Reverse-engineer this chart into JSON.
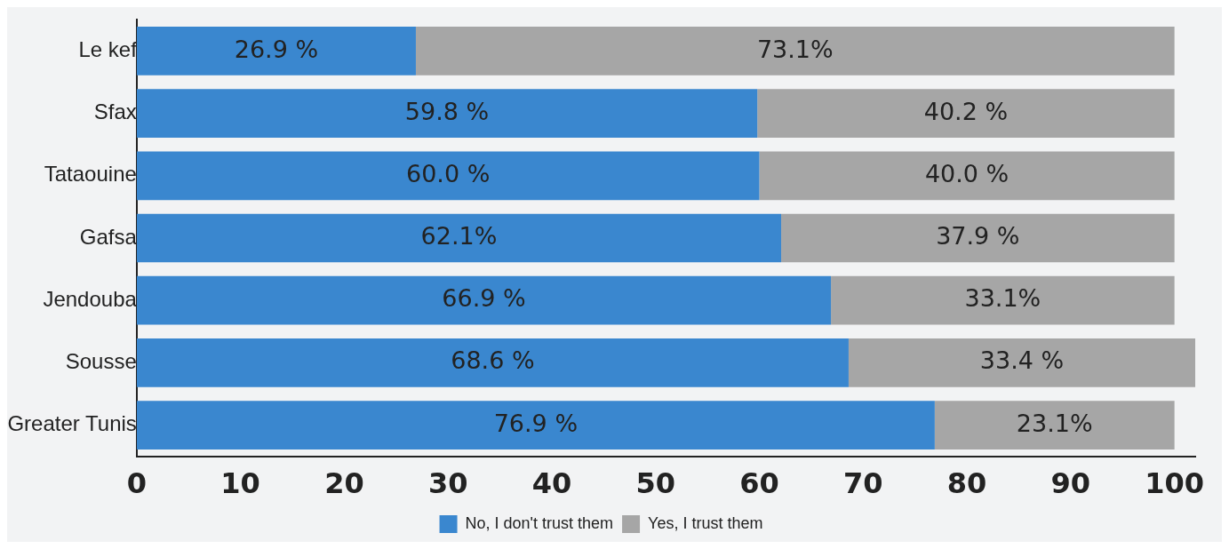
{
  "chart_data": {
    "type": "bar",
    "orientation": "horizontal",
    "stacked": true,
    "categories": [
      "Le kef",
      "Sfax",
      "Tataouine",
      "Gafsa",
      "Jendouba",
      "Sousse",
      "Greater Tunis"
    ],
    "series": [
      {
        "name": "No, I don't trust them",
        "color": "#3a87cf",
        "values": [
          26.9,
          59.8,
          60.0,
          62.1,
          66.9,
          68.6,
          76.9
        ],
        "value_labels": [
          "26.9 %",
          "59.8 %",
          "60.0 %",
          "62.1%",
          "66.9 %",
          "68.6 %",
          "76.9 %"
        ]
      },
      {
        "name": "Yes, I trust them",
        "color": "#a6a6a6",
        "values": [
          73.1,
          40.2,
          40.0,
          37.9,
          33.1,
          33.4,
          23.1
        ],
        "value_labels": [
          "73.1%",
          "40.2 %",
          "40.0 %",
          "37.9 %",
          "33.1%",
          "33.4 %",
          "23.1%"
        ]
      }
    ],
    "xlim": [
      0,
      102
    ],
    "xticks": [
      0,
      10,
      20,
      30,
      40,
      50,
      60,
      70,
      80,
      90,
      100
    ],
    "grid": false,
    "legend": "bottom"
  }
}
